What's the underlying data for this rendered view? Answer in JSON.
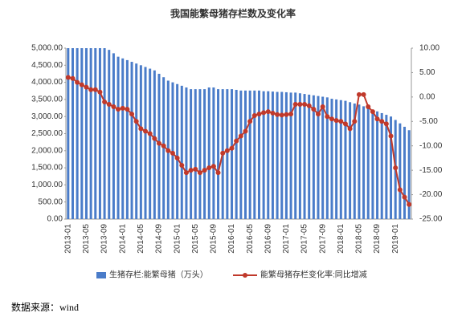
{
  "chart_data": {
    "type": "bar_line",
    "title": "我国能繁母猪存栏数及变化率",
    "source": "数据来源：wind",
    "categories": [
      "2013-01",
      null,
      null,
      null,
      "2013-05",
      null,
      null,
      null,
      "2013-09",
      null,
      null,
      null,
      "2014-01",
      null,
      null,
      null,
      "2014-05",
      null,
      null,
      null,
      "2014-09",
      null,
      null,
      null,
      "2015-01",
      null,
      null,
      null,
      "2015-05",
      null,
      null,
      null,
      "2015-09",
      null,
      null,
      null,
      "2016-01",
      null,
      null,
      null,
      "2016-05",
      null,
      null,
      null,
      "2016-09",
      null,
      null,
      null,
      "2017-01",
      null,
      null,
      null,
      "2017-05",
      null,
      null,
      null,
      "2017-09",
      null,
      null,
      null,
      "2018-01",
      null,
      null,
      null,
      "2018-05",
      null,
      null,
      null,
      "2018-09",
      null,
      null,
      null,
      "2019-01",
      null,
      null,
      null
    ],
    "series": [
      {
        "name": "生猪存栏:能繁母猪（万头）",
        "color": "#4a7cc9",
        "axis": "y",
        "values": [
          5000,
          5000,
          5000,
          5000,
          5000,
          5000,
          5000,
          5000,
          5000,
          4950,
          4850,
          4750,
          4700,
          4650,
          4600,
          4550,
          4500,
          4450,
          4400,
          4350,
          4250,
          4150,
          4050,
          4000,
          3950,
          3900,
          3850,
          3800,
          3800,
          3800,
          3800,
          3850,
          3850,
          3800,
          3800,
          3800,
          3800,
          3780,
          3760,
          3760,
          3760,
          3760,
          3760,
          3740,
          3740,
          3730,
          3720,
          3720,
          3710,
          3700,
          3700,
          3680,
          3660,
          3640,
          3620,
          3600,
          3580,
          3560,
          3520,
          3500,
          3480,
          3460,
          3420,
          3380,
          3350,
          3300,
          3250,
          3200,
          3150,
          3100,
          3050,
          3000,
          2900,
          2800,
          2700,
          2600
        ]
      },
      {
        "name": "能繁母猪存栏变化率:同比增减",
        "color": "#c0392b",
        "axis": "y2",
        "values": [
          4.0,
          3.8,
          3.0,
          2.5,
          2.0,
          1.5,
          1.5,
          1.0,
          -1.0,
          -1.5,
          -2.0,
          -2.5,
          -2.3,
          -2.5,
          -3.5,
          -5.0,
          -6.5,
          -7.0,
          -7.5,
          -8.5,
          -9.5,
          -10.0,
          -11.0,
          -11.5,
          -12.5,
          -14.0,
          -15.5,
          -15.0,
          -14.8,
          -15.5,
          -15.0,
          -14.5,
          -14.2,
          -15.5,
          -11.5,
          -11.0,
          -10.5,
          -9.0,
          -8.0,
          -7.0,
          -5.0,
          -3.8,
          -3.5,
          -3.2,
          -3.0,
          -3.3,
          -3.6,
          -3.7,
          -3.6,
          -3.5,
          -1.5,
          -1.5,
          -1.5,
          -1.8,
          -2.5,
          -3.5,
          -2.0,
          -4.0,
          -4.5,
          -4.8,
          -5.0,
          -5.5,
          -6.5,
          -5.0,
          0.5,
          0.5,
          -2.0,
          -3.0,
          -4.5,
          -5.0,
          -5.5,
          -8.0,
          -14.5,
          -19.0,
          -20.5,
          -22.0
        ]
      }
    ],
    "ylim": [
      0,
      5000
    ],
    "yticks": [
      {
        "value": 0,
        "label": "0.00"
      },
      {
        "value": 500,
        "label": "500.00"
      },
      {
        "value": 1000,
        "label": "1,000.00"
      },
      {
        "value": 1500,
        "label": "1,500.00"
      },
      {
        "value": 2000,
        "label": "2,000.00"
      },
      {
        "value": 2500,
        "label": "2,500.00"
      },
      {
        "value": 3000,
        "label": "3,000.00"
      },
      {
        "value": 3500,
        "label": "3,500.00"
      },
      {
        "value": 4000,
        "label": "4,000.00"
      },
      {
        "value": 4500,
        "label": "4,500.00"
      },
      {
        "value": 5000,
        "label": "5,000.00"
      }
    ],
    "y2lim": [
      -25,
      10
    ],
    "y2ticks": [
      {
        "value": -25,
        "label": "-25.00"
      },
      {
        "value": -20,
        "label": "-20.00"
      },
      {
        "value": -15,
        "label": "-15.00"
      },
      {
        "value": -10,
        "label": "-10.00"
      },
      {
        "value": -5,
        "label": "-5.00"
      },
      {
        "value": 0,
        "label": "0.00"
      },
      {
        "value": 5,
        "label": "5.00"
      },
      {
        "value": 10,
        "label": "10.00"
      }
    ],
    "legend": "bottom"
  }
}
